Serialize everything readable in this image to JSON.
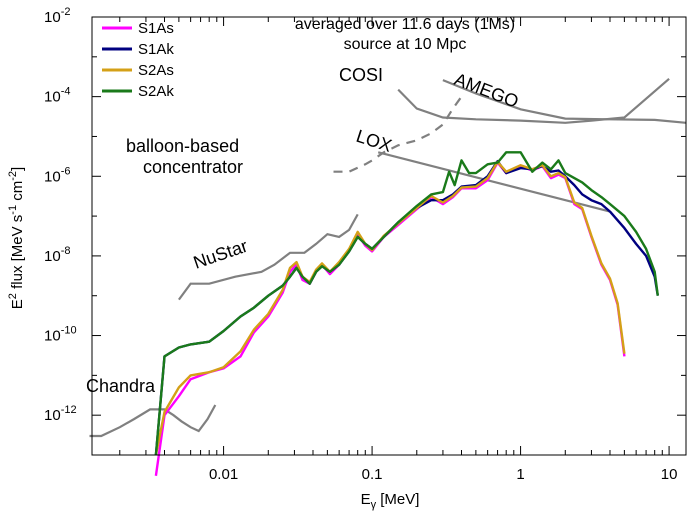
{
  "chart_data": {
    "type": "line",
    "xscale": "log",
    "yscale": "log",
    "xlim": [
      0.0013,
      13
    ],
    "ylim": [
      1e-13,
      0.01
    ],
    "xlabel": {
      "main": "E",
      "sub": "γ",
      "unit": " [MeV]"
    },
    "ylabel": {
      "p1": "E",
      "p1sup": "2",
      "p2": " flux [MeV s",
      "p2sup": "-1",
      "p3": " cm",
      "p3sup": "-2",
      "p4": "]"
    },
    "x_ticks": [
      {
        "v": 0.01,
        "label": "0.01"
      },
      {
        "v": 0.1,
        "label": "0.1"
      },
      {
        "v": 1,
        "label": "1"
      },
      {
        "v": 10,
        "label": "10"
      }
    ],
    "y_ticks": [
      {
        "v": 1e-12,
        "base": "10",
        "exp": "-12"
      },
      {
        "v": 1e-10,
        "base": "10",
        "exp": "-10"
      },
      {
        "v": 1e-08,
        "base": "10",
        "exp": "-8"
      },
      {
        "v": 1e-06,
        "base": "10",
        "exp": "-6"
      },
      {
        "v": 0.0001,
        "base": "10",
        "exp": "-4"
      },
      {
        "v": 0.01,
        "base": "10",
        "exp": "-2"
      }
    ],
    "title_lines": [
      "averaged over 11.6 days (1Ms)",
      "source at 10 Mpc"
    ],
    "legend_position": "top-left",
    "series": [
      {
        "name": "S1As",
        "color": "#ff00ff",
        "x": [
          0.0035,
          0.004,
          0.005,
          0.006,
          0.008,
          0.01,
          0.013,
          0.016,
          0.02,
          0.025,
          0.028,
          0.031,
          0.034,
          0.038,
          0.042,
          0.046,
          0.052,
          0.06,
          0.07,
          0.08,
          0.09,
          0.1,
          0.12,
          0.15,
          0.2,
          0.25,
          0.3,
          0.35,
          0.4,
          0.5,
          0.6,
          0.7,
          0.8,
          1.0,
          1.2,
          1.4,
          1.6,
          1.8,
          2.0,
          2.3,
          2.6,
          3.0,
          3.5,
          4.0,
          4.5,
          5.0
        ],
        "y": [
          3e-14,
          1e-12,
          3e-12,
          8e-12,
          1.2e-11,
          1.5e-11,
          3e-11,
          1.2e-10,
          3e-10,
          1.2e-09,
          4e-09,
          6e-09,
          2.5e-09,
          2e-09,
          4e-09,
          6e-09,
          3.5e-09,
          6e-09,
          1.4e-08,
          3.5e-08,
          1.8e-08,
          1.3e-08,
          3e-08,
          6e-08,
          1.5e-07,
          3e-07,
          2e-07,
          3e-07,
          5e-07,
          5e-07,
          8e-07,
          2.2e-06,
          1.2e-06,
          1.8e-06,
          1.4e-06,
          1.8e-06,
          9e-07,
          1.1e-06,
          9e-07,
          2e-07,
          1.5e-07,
          3e-08,
          6e-09,
          2.5e-09,
          6e-10,
          3e-11
        ]
      },
      {
        "name": "S1Ak",
        "color": "#000080",
        "x": [
          0.0035,
          0.004,
          0.005,
          0.006,
          0.008,
          0.01,
          0.013,
          0.016,
          0.02,
          0.025,
          0.028,
          0.031,
          0.034,
          0.038,
          0.042,
          0.046,
          0.052,
          0.06,
          0.07,
          0.08,
          0.09,
          0.1,
          0.12,
          0.15,
          0.2,
          0.25,
          0.3,
          0.35,
          0.4,
          0.5,
          0.6,
          0.7,
          0.8,
          1.0,
          1.2,
          1.4,
          1.6,
          1.8,
          2.0,
          2.3,
          2.6,
          3.0,
          3.5,
          4.0,
          5.0,
          6.0,
          7.0,
          8.0,
          8.4
        ],
        "y": [
          1e-13,
          3e-11,
          5e-11,
          6e-11,
          7e-11,
          1.3e-10,
          3e-10,
          5e-10,
          1e-09,
          1.8e-09,
          3e-09,
          5e-09,
          3e-09,
          2e-09,
          4e-09,
          5.5e-09,
          4e-09,
          6e-09,
          1.3e-08,
          3e-08,
          2e-08,
          1.5e-08,
          3e-08,
          7e-08,
          1.6e-07,
          2.5e-07,
          2.5e-07,
          3.5e-07,
          5.5e-07,
          6e-07,
          1e-06,
          2.4e-06,
          1.2e-06,
          1.6e-06,
          1.5e-06,
          1.8e-06,
          1.3e-06,
          1.4e-06,
          1e-06,
          6e-07,
          3.5e-07,
          2.5e-07,
          2e-07,
          1.3e-07,
          5e-08,
          2e-08,
          1e-08,
          3e-09,
          1e-09
        ]
      },
      {
        "name": "S2As",
        "color": "#d4a017",
        "x": [
          0.0035,
          0.004,
          0.005,
          0.006,
          0.008,
          0.01,
          0.013,
          0.016,
          0.02,
          0.025,
          0.028,
          0.031,
          0.034,
          0.038,
          0.042,
          0.046,
          0.052,
          0.06,
          0.07,
          0.08,
          0.09,
          0.1,
          0.12,
          0.15,
          0.2,
          0.25,
          0.3,
          0.35,
          0.4,
          0.5,
          0.6,
          0.7,
          0.8,
          1.0,
          1.2,
          1.4,
          1.6,
          1.8,
          2.0,
          2.3,
          2.6,
          3.0,
          3.5,
          4.0,
          4.5,
          5.0
        ],
        "y": [
          1e-13,
          1.2e-12,
          5e-12,
          1e-11,
          1.2e-11,
          1.6e-11,
          4e-11,
          1.4e-10,
          3.5e-10,
          1.4e-09,
          5e-09,
          7e-09,
          3e-09,
          2.2e-09,
          4.5e-09,
          6.5e-09,
          4e-09,
          7e-09,
          1.5e-08,
          4e-08,
          2e-08,
          1.4e-08,
          3.2e-08,
          6.5e-08,
          1.6e-07,
          3.2e-07,
          2.2e-07,
          3.2e-07,
          5.2e-07,
          5.5e-07,
          9e-07,
          2.3e-06,
          1.3e-06,
          1.9e-06,
          1.5e-06,
          1.9e-06,
          1e-06,
          1.2e-06,
          9.5e-07,
          2.2e-07,
          1.6e-07,
          3.2e-08,
          6.5e-09,
          2.7e-09,
          6.5e-10,
          3.5e-11
        ]
      },
      {
        "name": "S2Ak",
        "color": "#1a7a1a",
        "x": [
          0.0035,
          0.004,
          0.005,
          0.006,
          0.008,
          0.01,
          0.013,
          0.016,
          0.02,
          0.025,
          0.028,
          0.031,
          0.034,
          0.038,
          0.042,
          0.046,
          0.052,
          0.06,
          0.07,
          0.08,
          0.09,
          0.1,
          0.12,
          0.15,
          0.2,
          0.25,
          0.3,
          0.33,
          0.36,
          0.4,
          0.45,
          0.5,
          0.6,
          0.7,
          0.8,
          1.0,
          1.2,
          1.4,
          1.6,
          1.8,
          2.0,
          2.3,
          2.6,
          3.0,
          3.5,
          4.0,
          5.0,
          6.0,
          7.0,
          8.0,
          8.4
        ],
        "y": [
          1e-13,
          3e-11,
          5e-11,
          6e-11,
          7e-11,
          1.3e-10,
          3e-10,
          5e-10,
          1e-09,
          1.8e-09,
          3e-09,
          5e-09,
          3e-09,
          2e-09,
          4e-09,
          5.5e-09,
          4e-09,
          6e-09,
          1.3e-08,
          3e-08,
          2e-08,
          1.5e-08,
          3e-08,
          7e-08,
          1.8e-07,
          3.5e-07,
          4e-07,
          1.3e-06,
          6e-07,
          2.5e-06,
          1.2e-06,
          1.2e-06,
          2e-06,
          2.2e-06,
          4e-06,
          4e-06,
          1.3e-06,
          2.2e-06,
          1.5e-06,
          2.5e-06,
          1.2e-06,
          9e-07,
          7e-07,
          4.5e-07,
          3e-07,
          2e-07,
          1e-07,
          4e-08,
          1.5e-08,
          4e-09,
          1e-09
        ]
      }
    ],
    "sensitivity_curves": [
      {
        "name": "Chandra",
        "label": "Chandra",
        "color": "#808080",
        "style": "solid",
        "x": [
          0.00125,
          0.0015,
          0.002,
          0.0025,
          0.0032,
          0.004,
          0.0046,
          0.0052,
          0.006,
          0.0068,
          0.0078,
          0.0088
        ],
        "y": [
          3e-13,
          3e-13,
          5e-13,
          8e-13,
          1.4e-12,
          1.4e-12,
          1e-12,
          7e-13,
          5e-13,
          4e-13,
          8e-13,
          1.8e-12
        ]
      },
      {
        "name": "NuStar",
        "label": "NuStar",
        "color": "#808080",
        "style": "solid",
        "x": [
          0.005,
          0.006,
          0.008,
          0.012,
          0.018,
          0.022,
          0.028,
          0.035,
          0.042,
          0.05,
          0.06,
          0.07,
          0.08
        ],
        "y": [
          8e-10,
          2e-09,
          2e-09,
          3e-09,
          4e-09,
          6e-09,
          1.2e-08,
          1.2e-08,
          2e-08,
          3.5e-08,
          3e-08,
          4.5e-08,
          1.1e-07
        ]
      },
      {
        "name": "balloon-based concentrator",
        "label_lines": [
          "balloon-based",
          "concentrator"
        ],
        "color": "#808080",
        "style": "dashed",
        "x": [
          0.055,
          0.07,
          0.09,
          0.1,
          0.12,
          0.15,
          0.2,
          0.25,
          0.3,
          0.35,
          0.4
        ],
        "y": [
          1.3e-06,
          1.3e-06,
          2e-06,
          2.5e-06,
          4e-06,
          6e-06,
          8e-06,
          1.2e-05,
          2e-05,
          5e-05,
          0.0001
        ]
      },
      {
        "name": "LOX",
        "label": "LOX",
        "color": "#808080",
        "style": "solid",
        "x": [
          0.11,
          4.0
        ],
        "y": [
          4e-06,
          1.3e-07
        ]
      },
      {
        "name": "COSI",
        "label": "COSI",
        "color": "#808080",
        "style": "solid",
        "x": [
          0.15,
          0.2,
          0.3,
          0.5,
          1.0,
          2.0,
          3.0,
          5.0,
          10.0
        ],
        "y": [
          0.00015,
          5e-05,
          3e-05,
          2.7e-05,
          2.5e-05,
          2.2e-05,
          2.5e-05,
          3e-05,
          0.00028
        ]
      },
      {
        "name": "AMEGO",
        "label": "AMEGO",
        "color": "#808080",
        "style": "solid",
        "x": [
          0.3,
          0.5,
          1.0,
          2.0,
          4.0,
          8.0,
          13.0
        ],
        "y": [
          0.00026,
          0.00012,
          4.8e-05,
          2.8e-05,
          2.7e-05,
          2.6e-05,
          2.2e-05
        ]
      }
    ]
  }
}
